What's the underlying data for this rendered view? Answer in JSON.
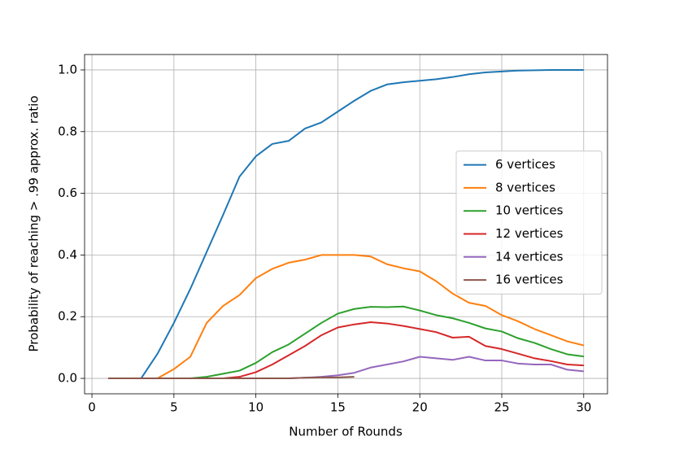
{
  "chart_data": {
    "type": "line",
    "xlabel": "Number of Rounds",
    "ylabel": "Probability of reaching > .99 approx. ratio",
    "xlim": [
      -0.45,
      31.45
    ],
    "ylim": [
      -0.05,
      1.05
    ],
    "xticks": [
      0,
      5,
      10,
      15,
      20,
      25,
      30
    ],
    "yticks": [
      {
        "value": 0,
        "label": "0.0"
      },
      {
        "value": 0.2,
        "label": "0.2"
      },
      {
        "value": 0.4,
        "label": "0.4"
      },
      {
        "value": 0.6,
        "label": "0.6"
      },
      {
        "value": 0.8,
        "label": "0.8"
      },
      {
        "value": 1.0,
        "label": "1.0"
      }
    ],
    "grid": true,
    "legend": "center right",
    "series": [
      {
        "name": "6 vertices",
        "color": "#1f77b4",
        "x": [
          1,
          2,
          3,
          4,
          5,
          6,
          7,
          8,
          9,
          10,
          11,
          12,
          13,
          14,
          15,
          16,
          17,
          18,
          19,
          20,
          21,
          22,
          23,
          24,
          25,
          26,
          27,
          28,
          29,
          30
        ],
        "values": [
          0,
          0,
          0,
          0.08,
          0.18,
          0.29,
          0.41,
          0.53,
          0.654,
          0.72,
          0.76,
          0.77,
          0.81,
          0.83,
          0.865,
          0.9,
          0.932,
          0.953,
          0.96,
          0.965,
          0.97,
          0.977,
          0.986,
          0.992,
          0.995,
          0.998,
          0.999,
          1.0,
          1.0,
          1.0
        ]
      },
      {
        "name": "8 vertices",
        "color": "#ff7f0e",
        "x": [
          1,
          2,
          3,
          4,
          5,
          6,
          7,
          8,
          9,
          10,
          11,
          12,
          13,
          14,
          15,
          16,
          17,
          18,
          19,
          20,
          21,
          22,
          23,
          24,
          25,
          26,
          27,
          28,
          29,
          30
        ],
        "values": [
          0,
          0,
          0,
          0,
          0.03,
          0.07,
          0.18,
          0.235,
          0.27,
          0.325,
          0.355,
          0.375,
          0.385,
          0.4,
          0.4,
          0.4,
          0.395,
          0.37,
          0.357,
          0.347,
          0.315,
          0.275,
          0.245,
          0.235,
          0.205,
          0.185,
          0.16,
          0.14,
          0.12,
          0.107
        ]
      },
      {
        "name": "10 vertices",
        "color": "#2ca02c",
        "x": [
          1,
          2,
          3,
          4,
          5,
          6,
          7,
          8,
          9,
          10,
          11,
          12,
          13,
          14,
          15,
          16,
          17,
          18,
          19,
          20,
          21,
          22,
          23,
          24,
          25,
          26,
          27,
          28,
          29,
          30
        ],
        "values": [
          0,
          0,
          0,
          0,
          0,
          0,
          0.005,
          0.015,
          0.025,
          0.05,
          0.085,
          0.11,
          0.145,
          0.18,
          0.21,
          0.225,
          0.232,
          0.231,
          0.233,
          0.22,
          0.205,
          0.195,
          0.18,
          0.162,
          0.152,
          0.13,
          0.115,
          0.095,
          0.078,
          0.071
        ]
      },
      {
        "name": "12 vertices",
        "color": "#d62728",
        "x": [
          1,
          2,
          3,
          4,
          5,
          6,
          7,
          8,
          9,
          10,
          11,
          12,
          13,
          14,
          15,
          16,
          17,
          18,
          19,
          20,
          21,
          22,
          23,
          24,
          25,
          26,
          27,
          28,
          29,
          30
        ],
        "values": [
          0,
          0,
          0,
          0,
          0,
          0,
          0,
          0,
          0.005,
          0.02,
          0.045,
          0.075,
          0.105,
          0.14,
          0.165,
          0.175,
          0.182,
          0.178,
          0.17,
          0.16,
          0.15,
          0.132,
          0.135,
          0.105,
          0.095,
          0.08,
          0.065,
          0.056,
          0.045,
          0.042
        ]
      },
      {
        "name": "14 vertices",
        "color": "#9467bd",
        "x": [
          1,
          2,
          3,
          4,
          5,
          6,
          7,
          8,
          9,
          10,
          11,
          12,
          13,
          14,
          15,
          16,
          17,
          18,
          19,
          20,
          21,
          22,
          23,
          24,
          25,
          26,
          27,
          28,
          29,
          30
        ],
        "values": [
          0,
          0,
          0,
          0,
          0,
          0,
          0,
          0,
          0,
          0,
          0,
          0,
          0.002,
          0.005,
          0.01,
          0.018,
          0.035,
          0.045,
          0.055,
          0.07,
          0.065,
          0.06,
          0.07,
          0.058,
          0.058,
          0.048,
          0.045,
          0.045,
          0.028,
          0.023
        ]
      },
      {
        "name": "16 vertices",
        "color": "#8c564b",
        "x": [
          1,
          2,
          3,
          4,
          5,
          6,
          7,
          8,
          9,
          10,
          11,
          12,
          13,
          14,
          15,
          16
        ],
        "values": [
          0,
          0,
          0,
          0,
          0,
          0,
          0,
          0,
          0,
          0,
          0,
          0,
          0.002,
          0.003,
          0.003,
          0.005
        ]
      }
    ]
  }
}
